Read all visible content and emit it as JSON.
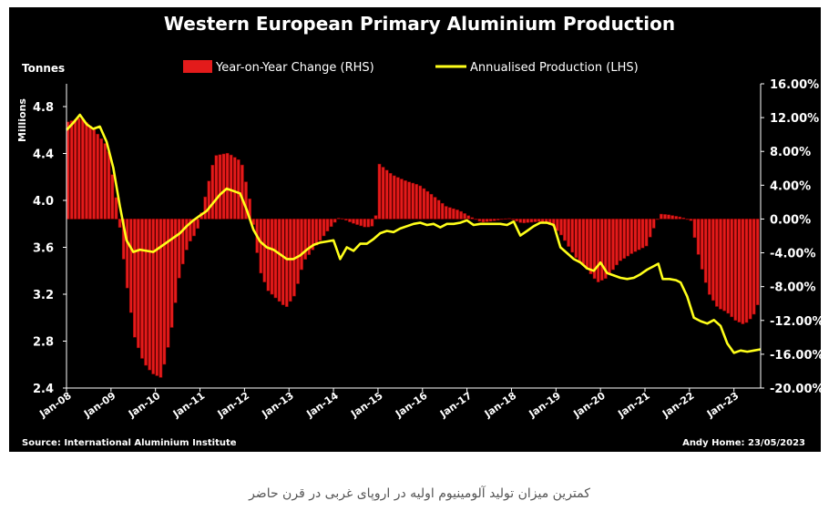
{
  "caption": "کمترین میزان تولید آلومینیوم اولیه در اروپای غربی در قرن حاضر",
  "colors": {
    "background": "#000000",
    "bar": "#e31b1b",
    "line": "#ffff1a",
    "text": "#ffffff"
  },
  "chart_data": {
    "type": "bar+line",
    "title": "Western European Primary Aluminium Production",
    "left_axis_unit": "Tonnes",
    "left_axis_label": "Millions",
    "source": "Source: International Aluminium Institute",
    "credit": "Andy Home: 23/05/2023",
    "x_tick_labels": [
      "Jan-08",
      "Jan-09",
      "Jan-10",
      "Jan-11",
      "Jan-12",
      "Jan-13",
      "Jan-14",
      "Jan-15",
      "Jan-16",
      "Jan-17",
      "Jan-18",
      "Jan-19",
      "Jan-20",
      "Jan-21",
      "Jan-22",
      "Jan-23"
    ],
    "x_range": [
      2008.0,
      2023.6
    ],
    "left_axis": {
      "ticks": [
        2.4,
        2.8,
        3.2,
        3.6,
        4.0,
        4.4,
        4.8
      ],
      "tick_labels": [
        "2.4",
        "2.8",
        "3.2",
        "3.6",
        "4.0",
        "4.4",
        "4.8"
      ],
      "ylim": [
        2.4,
        5.0
      ]
    },
    "right_axis": {
      "ticks": [
        -20,
        -16,
        -12,
        -8,
        -4,
        0,
        4,
        8,
        12,
        16
      ],
      "tick_labels": [
        "-20.00%",
        "-16.00%",
        "-12.00%",
        "-8.00%",
        "-4.00%",
        "0.00%",
        "4.00%",
        "8.00%",
        "12.00%",
        "16.00%"
      ],
      "ylim": [
        -20,
        16
      ]
    },
    "series": [
      {
        "name": "Year-on-Year Change (RHS)",
        "kind": "bar",
        "axis": "right",
        "points": [
          [
            2008.0,
            11.5
          ],
          [
            2008.3,
            12.0
          ],
          [
            2008.6,
            10.5
          ],
          [
            2008.9,
            8.5
          ],
          [
            2009.1,
            2.0
          ],
          [
            2009.3,
            -7.0
          ],
          [
            2009.5,
            -14.0
          ],
          [
            2009.7,
            -17.0
          ],
          [
            2009.9,
            -18.3
          ],
          [
            2010.1,
            -18.8
          ],
          [
            2010.3,
            -14.0
          ],
          [
            2010.5,
            -7.0
          ],
          [
            2010.7,
            -3.0
          ],
          [
            2010.9,
            -1.5
          ],
          [
            2011.1,
            3.0
          ],
          [
            2011.3,
            7.5
          ],
          [
            2011.6,
            7.8
          ],
          [
            2011.9,
            6.8
          ],
          [
            2012.1,
            2.0
          ],
          [
            2012.3,
            -6.0
          ],
          [
            2012.5,
            -8.5
          ],
          [
            2012.7,
            -9.5
          ],
          [
            2012.9,
            -10.5
          ],
          [
            2013.1,
            -9.0
          ],
          [
            2013.3,
            -5.0
          ],
          [
            2013.6,
            -3.0
          ],
          [
            2013.9,
            -1.0
          ],
          [
            2014.1,
            0.2
          ],
          [
            2014.4,
            -0.5
          ],
          [
            2014.7,
            -1.0
          ],
          [
            2014.9,
            -0.8
          ],
          [
            2015.0,
            6.5
          ],
          [
            2015.3,
            5.2
          ],
          [
            2015.6,
            4.5
          ],
          [
            2015.9,
            4.0
          ],
          [
            2016.2,
            2.8
          ],
          [
            2016.5,
            1.5
          ],
          [
            2016.8,
            1.0
          ],
          [
            2017.0,
            0.4
          ],
          [
            2017.3,
            -0.4
          ],
          [
            2017.6,
            -0.2
          ],
          [
            2017.9,
            0.1
          ],
          [
            2018.2,
            -0.5
          ],
          [
            2018.6,
            -0.3
          ],
          [
            2018.9,
            -0.8
          ],
          [
            2019.1,
            -2.0
          ],
          [
            2019.4,
            -4.5
          ],
          [
            2019.6,
            -5.5
          ],
          [
            2019.9,
            -7.5
          ],
          [
            2020.1,
            -7.0
          ],
          [
            2020.4,
            -5.0
          ],
          [
            2020.7,
            -4.0
          ],
          [
            2021.0,
            -3.2
          ],
          [
            2021.3,
            0.6
          ],
          [
            2021.5,
            0.5
          ],
          [
            2021.8,
            0.2
          ],
          [
            2022.0,
            -0.2
          ],
          [
            2022.2,
            -5.0
          ],
          [
            2022.4,
            -8.8
          ],
          [
            2022.6,
            -10.5
          ],
          [
            2022.8,
            -11.0
          ],
          [
            2023.0,
            -12.0
          ],
          [
            2023.2,
            -12.5
          ],
          [
            2023.4,
            -11.5
          ],
          [
            2023.55,
            -9.5
          ]
        ]
      },
      {
        "name": "Annualised Production (LHS)",
        "kind": "line",
        "axis": "left",
        "points": [
          [
            2008.0,
            4.6
          ],
          [
            2008.15,
            4.66
          ],
          [
            2008.3,
            4.73
          ],
          [
            2008.45,
            4.65
          ],
          [
            2008.6,
            4.61
          ],
          [
            2008.75,
            4.63
          ],
          [
            2008.9,
            4.5
          ],
          [
            2009.05,
            4.28
          ],
          [
            2009.2,
            3.95
          ],
          [
            2009.35,
            3.66
          ],
          [
            2009.5,
            3.56
          ],
          [
            2009.65,
            3.58
          ],
          [
            2009.8,
            3.57
          ],
          [
            2009.95,
            3.56
          ],
          [
            2010.1,
            3.6
          ],
          [
            2010.25,
            3.64
          ],
          [
            2010.4,
            3.68
          ],
          [
            2010.55,
            3.72
          ],
          [
            2010.7,
            3.78
          ],
          [
            2010.85,
            3.83
          ],
          [
            2011.0,
            3.87
          ],
          [
            2011.15,
            3.91
          ],
          [
            2011.3,
            3.98
          ],
          [
            2011.45,
            4.05
          ],
          [
            2011.6,
            4.1
          ],
          [
            2011.75,
            4.08
          ],
          [
            2011.9,
            4.06
          ],
          [
            2012.05,
            3.92
          ],
          [
            2012.2,
            3.75
          ],
          [
            2012.35,
            3.65
          ],
          [
            2012.5,
            3.6
          ],
          [
            2012.65,
            3.58
          ],
          [
            2012.8,
            3.54
          ],
          [
            2012.95,
            3.5
          ],
          [
            2013.1,
            3.5
          ],
          [
            2013.25,
            3.53
          ],
          [
            2013.4,
            3.58
          ],
          [
            2013.55,
            3.62
          ],
          [
            2013.7,
            3.64
          ],
          [
            2013.85,
            3.65
          ],
          [
            2014.0,
            3.66
          ],
          [
            2014.15,
            3.5
          ],
          [
            2014.3,
            3.6
          ],
          [
            2014.45,
            3.57
          ],
          [
            2014.6,
            3.63
          ],
          [
            2014.75,
            3.63
          ],
          [
            2014.9,
            3.67
          ],
          [
            2015.05,
            3.72
          ],
          [
            2015.2,
            3.74
          ],
          [
            2015.35,
            3.73
          ],
          [
            2015.5,
            3.76
          ],
          [
            2015.65,
            3.78
          ],
          [
            2015.8,
            3.8
          ],
          [
            2015.95,
            3.81
          ],
          [
            2016.1,
            3.79
          ],
          [
            2016.25,
            3.8
          ],
          [
            2016.4,
            3.77
          ],
          [
            2016.55,
            3.8
          ],
          [
            2016.7,
            3.8
          ],
          [
            2016.85,
            3.81
          ],
          [
            2017.0,
            3.83
          ],
          [
            2017.15,
            3.79
          ],
          [
            2017.3,
            3.8
          ],
          [
            2017.45,
            3.8
          ],
          [
            2017.6,
            3.8
          ],
          [
            2017.75,
            3.8
          ],
          [
            2017.9,
            3.79
          ],
          [
            2018.05,
            3.82
          ],
          [
            2018.2,
            3.7
          ],
          [
            2018.35,
            3.74
          ],
          [
            2018.5,
            3.78
          ],
          [
            2018.65,
            3.81
          ],
          [
            2018.8,
            3.81
          ],
          [
            2018.95,
            3.79
          ],
          [
            2019.1,
            3.6
          ],
          [
            2019.25,
            3.55
          ],
          [
            2019.4,
            3.5
          ],
          [
            2019.55,
            3.47
          ],
          [
            2019.7,
            3.42
          ],
          [
            2019.85,
            3.4
          ],
          [
            2020.0,
            3.47
          ],
          [
            2020.15,
            3.38
          ],
          [
            2020.3,
            3.36
          ],
          [
            2020.45,
            3.34
          ],
          [
            2020.6,
            3.33
          ],
          [
            2020.75,
            3.34
          ],
          [
            2020.9,
            3.37
          ],
          [
            2021.05,
            3.41
          ],
          [
            2021.2,
            3.44
          ],
          [
            2021.3,
            3.46
          ],
          [
            2021.4,
            3.33
          ],
          [
            2021.55,
            3.33
          ],
          [
            2021.7,
            3.32
          ],
          [
            2021.8,
            3.3
          ],
          [
            2021.95,
            3.18
          ],
          [
            2022.1,
            3.0
          ],
          [
            2022.25,
            2.97
          ],
          [
            2022.4,
            2.95
          ],
          [
            2022.55,
            2.98
          ],
          [
            2022.7,
            2.93
          ],
          [
            2022.85,
            2.78
          ],
          [
            2023.0,
            2.7
          ],
          [
            2023.15,
            2.72
          ],
          [
            2023.3,
            2.71
          ],
          [
            2023.45,
            2.72
          ],
          [
            2023.6,
            2.73
          ]
        ]
      }
    ]
  }
}
